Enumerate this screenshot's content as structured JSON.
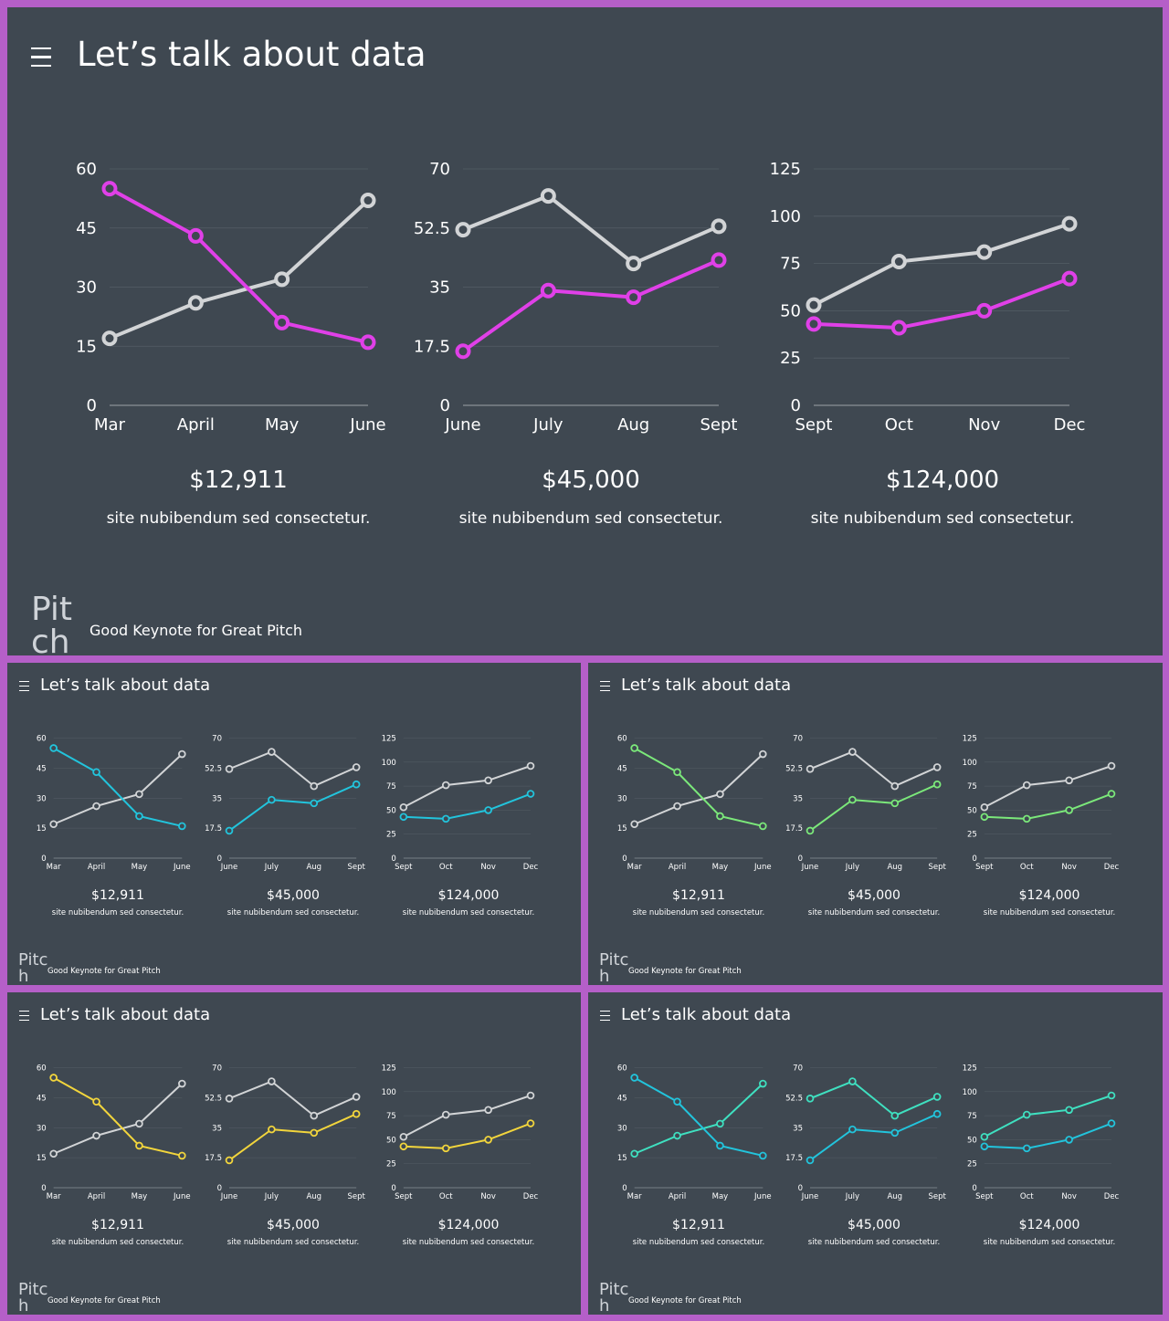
{
  "slide": {
    "title": "Let’s talk about data",
    "brand": "Pitch",
    "tagline": "Good Keynote for Great Pitch"
  },
  "colors": {
    "background": "#3f4851",
    "frame": "#b55fc8",
    "baseline_series": "#d2d4d6",
    "gray_series": "#d2d4d6"
  },
  "chart_data": [
    {
      "type": "line",
      "categories": [
        "Mar",
        "April",
        "May",
        "June"
      ],
      "yticks": [
        "0",
        "15",
        "30",
        "45",
        "60"
      ],
      "ylim": [
        0,
        60
      ],
      "grid": true,
      "series": [
        {
          "values": [
            17,
            26,
            32,
            52
          ],
          "role": "gray"
        },
        {
          "values": [
            55,
            43,
            21,
            16
          ],
          "role": "accent"
        }
      ],
      "value_label": "$12,911",
      "caption": "site nubibendum sed consectetur."
    },
    {
      "type": "line",
      "categories": [
        "June",
        "July",
        "Aug",
        "Sept"
      ],
      "yticks": [
        "0",
        "17.5",
        "35",
        "52.5",
        "70"
      ],
      "ylim": [
        0,
        70
      ],
      "grid": true,
      "series": [
        {
          "values": [
            52,
            62,
            42,
            53
          ],
          "role": "gray"
        },
        {
          "values": [
            16,
            34,
            32,
            43
          ],
          "role": "accent"
        }
      ],
      "value_label": "$45,000",
      "caption": "site nubibendum sed consectetur."
    },
    {
      "type": "line",
      "categories": [
        "Sept",
        "Oct",
        "Nov",
        "Dec"
      ],
      "yticks": [
        "0",
        "25",
        "50",
        "75",
        "100",
        "125"
      ],
      "ylim": [
        0,
        125
      ],
      "grid": true,
      "series": [
        {
          "values": [
            53,
            76,
            81,
            96
          ],
          "role": "gray"
        },
        {
          "values": [
            43,
            41,
            50,
            67
          ],
          "role": "accent"
        }
      ],
      "value_label": "$124,000",
      "caption": "site nubibendum sed consectetur."
    }
  ],
  "variants": [
    {
      "accent": "#e040e8",
      "gray_series": "#d2d4d6"
    },
    {
      "accent": "#22c4dc",
      "gray_series": "#d2d4d6"
    },
    {
      "accent": "#7be87a",
      "gray_series": "#d2d4d6"
    },
    {
      "accent": "#f2d53c",
      "gray_series": "#d2d4d6"
    },
    {
      "accent": "#22c4dc",
      "gray_series": "#3fe0c0"
    }
  ]
}
